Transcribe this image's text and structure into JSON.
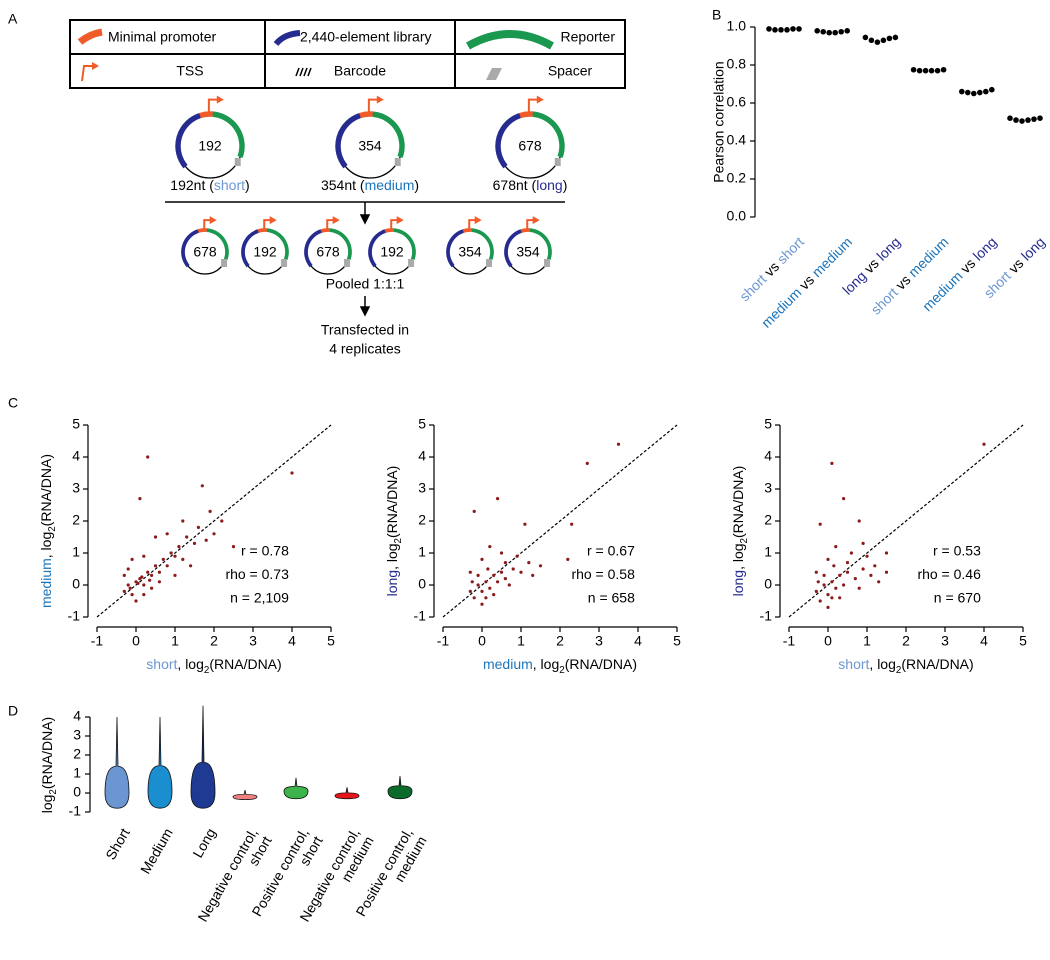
{
  "panels": [
    "A",
    "B",
    "C",
    "D"
  ],
  "word_colors": {
    "short": "#6b96d1",
    "medium": "#1b75bb",
    "long": "#262b8f"
  },
  "diagram": {
    "legend": [
      [
        "Minimal promoter",
        "2,440-element library",
        "Reporter"
      ],
      [
        "TSS",
        "Barcode",
        "Spacer"
      ]
    ],
    "plasmids": [
      {
        "size": "192",
        "label": [
          "192nt (",
          "short",
          ")"
        ]
      },
      {
        "size": "354",
        "label": [
          "354nt (",
          "medium",
          ")"
        ]
      },
      {
        "size": "678",
        "label": [
          "678nt (",
          "long",
          ")"
        ]
      }
    ],
    "pooled": [
      "678",
      "192",
      "678",
      "192",
      "354",
      "354"
    ],
    "steps": [
      "Pooled 1:1:1",
      "Transfected in",
      "4 replicates"
    ]
  },
  "chart_data": [
    {
      "type": "dot",
      "ylabel": "Pearson correlation",
      "color": "#000000",
      "ylim": [
        0,
        1
      ],
      "yticks": [
        {
          "value": 0,
          "label": "0.0"
        },
        {
          "value": 0.2,
          "label": "0.2"
        },
        {
          "value": 0.4,
          "label": "0.4"
        },
        {
          "value": 0.6,
          "label": "0.6"
        },
        {
          "value": 0.8,
          "label": "0.8"
        },
        {
          "value": 1,
          "label": "1.0"
        }
      ],
      "categories": [
        [
          "short",
          " vs ",
          "short"
        ],
        [
          "medium",
          " vs ",
          "medium"
        ],
        [
          "long",
          " vs ",
          "long"
        ],
        [
          "short",
          " vs ",
          "medium"
        ],
        [
          "medium",
          " vs ",
          "long"
        ],
        [
          "short",
          " vs ",
          "long"
        ]
      ],
      "values": [
        [
          0.99,
          0.985,
          0.985,
          0.985,
          0.99,
          0.99
        ],
        [
          0.98,
          0.975,
          0.97,
          0.97,
          0.975,
          0.98
        ],
        [
          0.945,
          0.93,
          0.92,
          0.93,
          0.94,
          0.945
        ],
        [
          0.775,
          0.77,
          0.77,
          0.77,
          0.77,
          0.775
        ],
        [
          0.66,
          0.655,
          0.65,
          0.655,
          0.66,
          0.67
        ],
        [
          0.52,
          0.51,
          0.505,
          0.51,
          0.515,
          0.52
        ]
      ]
    },
    {
      "type": "scatter",
      "color": "#8b1a1a",
      "identity_line": true,
      "xlabel": [
        "short",
        ", log",
        "2",
        "(RNA/DNA)"
      ],
      "ylabel": [
        "medium",
        ", log",
        "2",
        "(RNA/DNA)"
      ],
      "stats": [
        "r = 0.78",
        "rho = 0.73",
        "n = 2,109"
      ],
      "xlim": [
        -1,
        5
      ],
      "ylim": [
        -1,
        5
      ],
      "xticks": [
        -1,
        0,
        1,
        2,
        3,
        4,
        5
      ],
      "yticks": [
        -1,
        0,
        1,
        2,
        3,
        4,
        5
      ],
      "x": [
        -0.3,
        -0.2,
        -0.1,
        0,
        0.1,
        0.2,
        0.3,
        0.4,
        0.5,
        0.6,
        0.7,
        0.8,
        0.9,
        1.0,
        1.1,
        1.2,
        1.3,
        1.5,
        1.6,
        1.8,
        2.0,
        2.2,
        0.3,
        1.7,
        4.0,
        0.1,
        -0.2,
        0,
        0.2,
        -0.3,
        0.5,
        1.0,
        0.8,
        1.4,
        0.6,
        -0.1,
        0.2,
        0.4,
        1.2,
        2.5,
        0.05,
        -0.15,
        0.15,
        0.35,
        1.9
      ],
      "y": [
        -0.2,
        0,
        -0.3,
        0.1,
        0.2,
        0,
        0.4,
        0.3,
        0.6,
        0.4,
        0.8,
        0.6,
        1.0,
        0.9,
        1.2,
        0.8,
        1.5,
        1.3,
        1.8,
        1.4,
        1.6,
        2.0,
        4.0,
        3.1,
        3.5,
        2.7,
        0.5,
        -0.5,
        -0.3,
        0.3,
        1.5,
        0.3,
        1.6,
        0.6,
        0.1,
        0.8,
        0.9,
        -0.1,
        2.0,
        1.2,
        0.05,
        -0.1,
        0.25,
        0.15,
        2.3
      ]
    },
    {
      "type": "scatter",
      "color": "#8b1a1a",
      "identity_line": true,
      "xlabel": [
        "medium",
        ", log",
        "2",
        "(RNA/DNA)"
      ],
      "ylabel": [
        "long",
        ", log",
        "2",
        "(RNA/DNA)"
      ],
      "stats": [
        "r = 0.67",
        "rho = 0.58",
        "n = 658"
      ],
      "xlim": [
        -1,
        5
      ],
      "ylim": [
        -1,
        5
      ],
      "xticks": [
        -1,
        0,
        1,
        2,
        3,
        4,
        5
      ],
      "yticks": [
        -1,
        0,
        1,
        2,
        3,
        4,
        5
      ],
      "x": [
        -0.3,
        -0.2,
        -0.1,
        0,
        0.1,
        0.2,
        0.3,
        0.4,
        0.5,
        0.6,
        0.8,
        1.0,
        1.2,
        1.5,
        -0.2,
        0.4,
        1.1,
        2.3,
        2.7,
        3.5,
        2.2,
        0,
        0.2,
        0.5,
        -0.3,
        0,
        0.3,
        0.7,
        0.9,
        1.3,
        0.1,
        -0.1,
        0.15,
        0.6,
        -0.25
      ],
      "y": [
        -0.2,
        -0.4,
        0,
        -0.2,
        0.1,
        -0.1,
        0.3,
        0.1,
        0.4,
        0.2,
        0.5,
        0.4,
        0.7,
        0.6,
        2.3,
        2.7,
        1.9,
        1.9,
        3.8,
        4.4,
        0.8,
        0.8,
        1.2,
        1.0,
        0.4,
        -0.6,
        -0.3,
        0,
        0.9,
        0.3,
        -0.4,
        0.3,
        0.5,
        0.7,
        0.1
      ]
    },
    {
      "type": "scatter",
      "color": "#8b1a1a",
      "identity_line": true,
      "xlabel": [
        "short",
        ", log",
        "2",
        "(RNA/DNA)"
      ],
      "ylabel": [
        "long",
        ", log",
        "2",
        "(RNA/DNA)"
      ],
      "stats": [
        "r = 0.53",
        "rho = 0.46",
        "n = 670"
      ],
      "xlim": [
        -1,
        5
      ],
      "ylim": [
        -1,
        5
      ],
      "xticks": [
        -1,
        0,
        1,
        2,
        3,
        4,
        5
      ],
      "yticks": [
        -1,
        0,
        1,
        2,
        3,
        4,
        5
      ],
      "x": [
        -0.3,
        -0.2,
        -0.1,
        0,
        0.1,
        0.2,
        0.3,
        0.4,
        0.5,
        0.7,
        0.9,
        1.0,
        1.2,
        1.5,
        1.5,
        0.1,
        0.4,
        -0.2,
        0.8,
        4.0,
        1.3,
        0,
        0.2,
        0.6,
        -0.3,
        0,
        0.3,
        0.8,
        1.1,
        0.1,
        -0.1,
        0.15,
        0.5,
        -0.25,
        0.9
      ],
      "y": [
        -0.2,
        -0.5,
        0,
        -0.3,
        0.1,
        -0.1,
        0.3,
        0,
        0.4,
        0.2,
        0.5,
        0.9,
        0.6,
        1.0,
        0.4,
        3.8,
        2.7,
        1.9,
        2.0,
        4.4,
        0.1,
        0.8,
        1.2,
        1.0,
        0.4,
        -0.7,
        -0.4,
        -0.1,
        0.3,
        -0.4,
        0.3,
        0.6,
        0.7,
        0.1,
        1.3
      ]
    },
    {
      "type": "violin",
      "ylabel": [
        "log",
        "2",
        "(RNA/DNA)"
      ],
      "ylim": [
        -1,
        4
      ],
      "yticks": [
        -1,
        0,
        1,
        2,
        3,
        4
      ],
      "categories": [
        [
          "Short"
        ],
        [
          "Medium"
        ],
        [
          "Long"
        ],
        [
          "Negative control,",
          "short"
        ],
        [
          "Positive control,",
          "short"
        ],
        [
          "Negative control,",
          "medium"
        ],
        [
          "Positive control,",
          "medium"
        ]
      ],
      "colors": [
        "#6b96d1",
        "#1b8ed0",
        "#1f3a93",
        "#f08080",
        "#3cb44b",
        "#e8141c",
        "#0a6b2a"
      ],
      "values": [
        [
          -0.8,
          0,
          4.0
        ],
        [
          -0.8,
          0.05,
          4.0
        ],
        [
          -0.8,
          0,
          4.6
        ],
        [
          -0.35,
          -0.2,
          0.15
        ],
        [
          -0.3,
          0.1,
          0.8
        ],
        [
          -0.3,
          -0.15,
          0.3
        ],
        [
          -0.3,
          0.1,
          0.9
        ]
      ]
    }
  ]
}
